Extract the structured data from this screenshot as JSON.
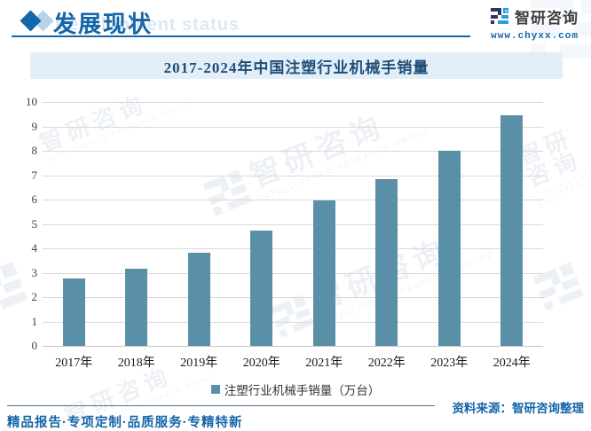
{
  "header": {
    "title": "发展现状",
    "subtitle_en": "Development status"
  },
  "brand": {
    "name": "智研咨询",
    "website": "www.chyxx.com",
    "source_note": "资料来源：智研咨询整理",
    "footer_slogan": "精品报告·专项定制·品质服务·专精特新"
  },
  "watermark": {
    "text": "智研咨询",
    "subtext": "INTELLIGENCE RESEARCH GROUP"
  },
  "icons": {
    "section_bullet": "diamond-icon",
    "brand_mark": "brand-logo-icon"
  },
  "colors": {
    "accent_blue": "#1566ab",
    "title_dark_blue": "#1f4e79",
    "banner_bg": "#e2eef8",
    "bar": "#5a8fa8",
    "gridline": "#d9d9d9"
  },
  "chart_data": {
    "type": "bar",
    "title": "2017-2024年中国注塑行业机械手销量",
    "categories": [
      "2017年",
      "2018年",
      "2019年",
      "2020年",
      "2021年",
      "2022年",
      "2023年",
      "2024年"
    ],
    "series": [
      {
        "name": "注塑行业机械手销量（万台）",
        "values": [
          2.75,
          3.17,
          3.82,
          4.72,
          5.95,
          6.83,
          8.0,
          9.45
        ]
      }
    ],
    "xlabel": "",
    "ylabel": "",
    "ylim": [
      0,
      10
    ],
    "yticks": [
      0,
      1,
      2,
      3,
      4,
      5,
      6,
      7,
      8,
      9,
      10
    ],
    "grid": true,
    "legend_position": "bottom",
    "bar_color": "#5a8fa8"
  }
}
